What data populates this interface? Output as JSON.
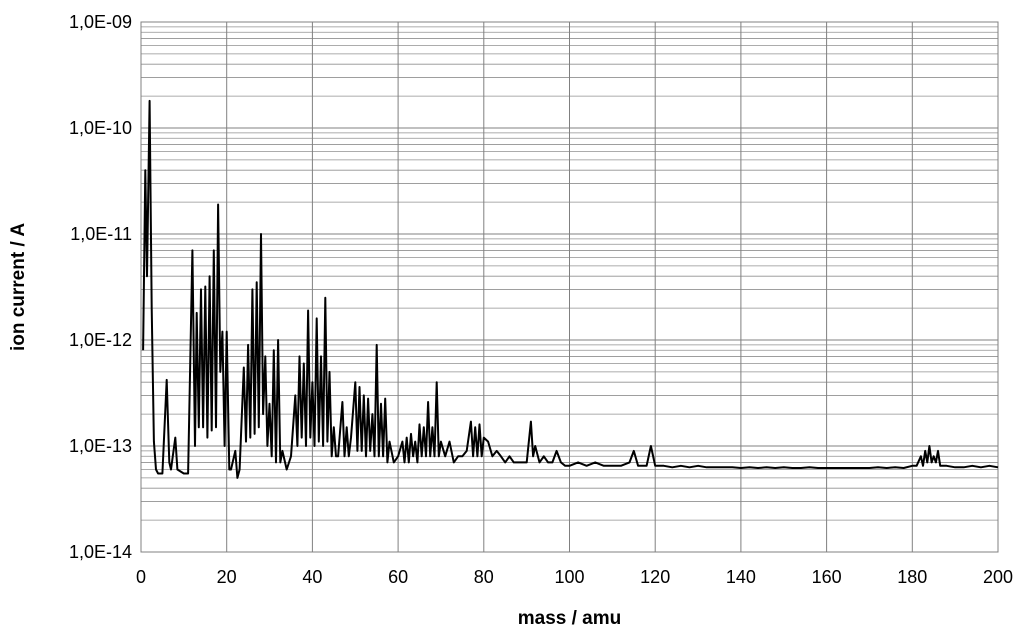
{
  "chart_data": {
    "type": "line",
    "title": "",
    "xlabel": "mass / amu",
    "ylabel": "ion current / A",
    "xlim": [
      0,
      200
    ],
    "ylim": [
      1e-14,
      1e-09
    ],
    "y_scale": "log",
    "grid": true,
    "legend": "none",
    "x_ticks": [
      "0",
      "20",
      "40",
      "60",
      "80",
      "100",
      "120",
      "140",
      "160",
      "180",
      "200"
    ],
    "y_ticks": [
      "1,0E-14",
      "1,0E-13",
      "1,0E-12",
      "1,0E-11",
      "1,0E-10",
      "1,0E-09"
    ],
    "series_color": "#000000",
    "series": [
      {
        "points": [
          [
            0.5,
            8e-13
          ],
          [
            1,
            4e-11
          ],
          [
            1.4,
            4e-12
          ],
          [
            2,
            1.8e-10
          ],
          [
            2.5,
            2e-12
          ],
          [
            3,
            1.1e-13
          ],
          [
            3.5,
            6e-14
          ],
          [
            4,
            5.5e-14
          ],
          [
            5,
            5.5e-14
          ],
          [
            6,
            4.2e-13
          ],
          [
            6.6,
            7e-14
          ],
          [
            7,
            6e-14
          ],
          [
            8,
            1.2e-13
          ],
          [
            8.5,
            6e-14
          ],
          [
            10,
            5.5e-14
          ],
          [
            11,
            5.5e-14
          ],
          [
            12,
            7e-12
          ],
          [
            12.6,
            1e-13
          ],
          [
            13,
            1.8e-12
          ],
          [
            13.5,
            1.5e-13
          ],
          [
            14,
            3e-12
          ],
          [
            14.5,
            1.5e-13
          ],
          [
            15,
            3.2e-12
          ],
          [
            15.5,
            1.2e-13
          ],
          [
            16,
            4e-12
          ],
          [
            16.5,
            1.4e-13
          ],
          [
            17,
            7e-12
          ],
          [
            17.5,
            1.5e-13
          ],
          [
            18,
            1.9e-11
          ],
          [
            18.5,
            5e-13
          ],
          [
            19,
            1.2e-12
          ],
          [
            19.5,
            1e-13
          ],
          [
            20,
            1.2e-12
          ],
          [
            20.6,
            6e-14
          ],
          [
            21,
            6e-14
          ],
          [
            22,
            9e-14
          ],
          [
            22.5,
            5e-14
          ],
          [
            23,
            6e-14
          ],
          [
            24,
            5.5e-13
          ],
          [
            24.5,
            1.1e-13
          ],
          [
            25,
            9e-13
          ],
          [
            25.5,
            1.2e-13
          ],
          [
            26,
            3e-12
          ],
          [
            26.5,
            1.3e-13
          ],
          [
            27,
            3.5e-12
          ],
          [
            27.5,
            1.5e-13
          ],
          [
            28,
            1e-11
          ],
          [
            28.5,
            2e-13
          ],
          [
            29,
            7e-13
          ],
          [
            29.5,
            1e-13
          ],
          [
            30,
            2.5e-13
          ],
          [
            30.5,
            8e-14
          ],
          [
            31,
            8e-13
          ],
          [
            31.5,
            7e-14
          ],
          [
            32,
            1e-12
          ],
          [
            32.5,
            7e-14
          ],
          [
            33,
            9e-14
          ],
          [
            34,
            6e-14
          ],
          [
            35,
            8e-14
          ],
          [
            36,
            3e-13
          ],
          [
            36.5,
            1e-13
          ],
          [
            37,
            7e-13
          ],
          [
            37.5,
            1.2e-13
          ],
          [
            38,
            6e-13
          ],
          [
            38.5,
            1e-13
          ],
          [
            39,
            1.9e-12
          ],
          [
            39.5,
            1.2e-13
          ],
          [
            40,
            4e-13
          ],
          [
            40.5,
            1e-13
          ],
          [
            41,
            1.6e-12
          ],
          [
            41.5,
            1.1e-13
          ],
          [
            42,
            7e-13
          ],
          [
            42.5,
            1e-13
          ],
          [
            43,
            2.5e-12
          ],
          [
            43.5,
            1.1e-13
          ],
          [
            44,
            5e-13
          ],
          [
            44.5,
            8e-14
          ],
          [
            45,
            1.5e-13
          ],
          [
            45.5,
            8e-14
          ],
          [
            46,
            8e-14
          ],
          [
            47,
            2.6e-13
          ],
          [
            47.5,
            8e-14
          ],
          [
            48,
            1.5e-13
          ],
          [
            48.5,
            8e-14
          ],
          [
            49,
            1.2e-13
          ],
          [
            50,
            4e-13
          ],
          [
            50.5,
            9e-14
          ],
          [
            51,
            3.6e-13
          ],
          [
            51.5,
            9e-14
          ],
          [
            52,
            3e-13
          ],
          [
            52.5,
            8e-14
          ],
          [
            53,
            2.8e-13
          ],
          [
            53.5,
            9e-14
          ],
          [
            54,
            2e-13
          ],
          [
            54.5,
            8e-14
          ],
          [
            55,
            9e-13
          ],
          [
            55.5,
            8e-14
          ],
          [
            56,
            2.5e-13
          ],
          [
            56.5,
            8e-14
          ],
          [
            57,
            2.8e-13
          ],
          [
            57.5,
            7e-14
          ],
          [
            58,
            1.1e-13
          ],
          [
            59,
            7e-14
          ],
          [
            60,
            8e-14
          ],
          [
            61,
            1.1e-13
          ],
          [
            61.5,
            7e-14
          ],
          [
            62,
            1.2e-13
          ],
          [
            62.5,
            7e-14
          ],
          [
            63,
            1.3e-13
          ],
          [
            63.5,
            8e-14
          ],
          [
            64,
            1.1e-13
          ],
          [
            64.5,
            7e-14
          ],
          [
            65,
            1.6e-13
          ],
          [
            65.5,
            8e-14
          ],
          [
            66,
            1.5e-13
          ],
          [
            66.5,
            8e-14
          ],
          [
            67,
            2.6e-13
          ],
          [
            67.5,
            8e-14
          ],
          [
            68,
            1.5e-13
          ],
          [
            68.5,
            8e-14
          ],
          [
            69,
            4e-13
          ],
          [
            69.5,
            8e-14
          ],
          [
            70,
            1.1e-13
          ],
          [
            71,
            8e-14
          ],
          [
            72,
            1.1e-13
          ],
          [
            73,
            7e-14
          ],
          [
            74,
            8e-14
          ],
          [
            75,
            8e-14
          ],
          [
            76,
            9e-14
          ],
          [
            77,
            1.7e-13
          ],
          [
            77.5,
            8e-14
          ],
          [
            78,
            1.5e-13
          ],
          [
            78.5,
            8e-14
          ],
          [
            79,
            1.6e-13
          ],
          [
            79.5,
            8e-14
          ],
          [
            80,
            1.2e-13
          ],
          [
            81,
            1.1e-13
          ],
          [
            82,
            8e-14
          ],
          [
            83,
            9e-14
          ],
          [
            84,
            8e-14
          ],
          [
            85,
            7e-14
          ],
          [
            86,
            8e-14
          ],
          [
            87,
            7e-14
          ],
          [
            88,
            7e-14
          ],
          [
            89,
            7e-14
          ],
          [
            90,
            7e-14
          ],
          [
            91,
            1.7e-13
          ],
          [
            91.5,
            8e-14
          ],
          [
            92,
            1e-13
          ],
          [
            93,
            7e-14
          ],
          [
            94,
            8e-14
          ],
          [
            95,
            7e-14
          ],
          [
            96,
            7e-14
          ],
          [
            97,
            9e-14
          ],
          [
            98,
            7e-14
          ],
          [
            99,
            6.5e-14
          ],
          [
            100,
            6.5e-14
          ],
          [
            102,
            7e-14
          ],
          [
            104,
            6.5e-14
          ],
          [
            106,
            7e-14
          ],
          [
            108,
            6.5e-14
          ],
          [
            110,
            6.5e-14
          ],
          [
            112,
            6.5e-14
          ],
          [
            114,
            7e-14
          ],
          [
            115,
            9e-14
          ],
          [
            116,
            6.5e-14
          ],
          [
            118,
            6.5e-14
          ],
          [
            119,
            1e-13
          ],
          [
            120,
            6.5e-14
          ],
          [
            122,
            6.5e-14
          ],
          [
            124,
            6.3e-14
          ],
          [
            126,
            6.5e-14
          ],
          [
            128,
            6.3e-14
          ],
          [
            130,
            6.5e-14
          ],
          [
            132,
            6.3e-14
          ],
          [
            134,
            6.3e-14
          ],
          [
            136,
            6.3e-14
          ],
          [
            138,
            6.3e-14
          ],
          [
            140,
            6.2e-14
          ],
          [
            142,
            6.3e-14
          ],
          [
            144,
            6.2e-14
          ],
          [
            146,
            6.3e-14
          ],
          [
            148,
            6.2e-14
          ],
          [
            150,
            6.3e-14
          ],
          [
            152,
            6.2e-14
          ],
          [
            154,
            6.2e-14
          ],
          [
            156,
            6.3e-14
          ],
          [
            158,
            6.2e-14
          ],
          [
            160,
            6.2e-14
          ],
          [
            162,
            6.2e-14
          ],
          [
            164,
            6.2e-14
          ],
          [
            166,
            6.2e-14
          ],
          [
            168,
            6.2e-14
          ],
          [
            170,
            6.2e-14
          ],
          [
            172,
            6.3e-14
          ],
          [
            174,
            6.2e-14
          ],
          [
            176,
            6.3e-14
          ],
          [
            178,
            6.2e-14
          ],
          [
            180,
            6.5e-14
          ],
          [
            181,
            6.5e-14
          ],
          [
            182,
            8e-14
          ],
          [
            182.5,
            6.5e-14
          ],
          [
            183,
            9e-14
          ],
          [
            183.5,
            7e-14
          ],
          [
            184,
            1e-13
          ],
          [
            184.5,
            7e-14
          ],
          [
            185,
            8e-14
          ],
          [
            185.5,
            7e-14
          ],
          [
            186,
            9e-14
          ],
          [
            186.5,
            6.5e-14
          ],
          [
            188,
            6.5e-14
          ],
          [
            190,
            6.3e-14
          ],
          [
            192,
            6.3e-14
          ],
          [
            194,
            6.5e-14
          ],
          [
            196,
            6.3e-14
          ],
          [
            198,
            6.5e-14
          ],
          [
            200,
            6.3e-14
          ]
        ]
      }
    ]
  }
}
